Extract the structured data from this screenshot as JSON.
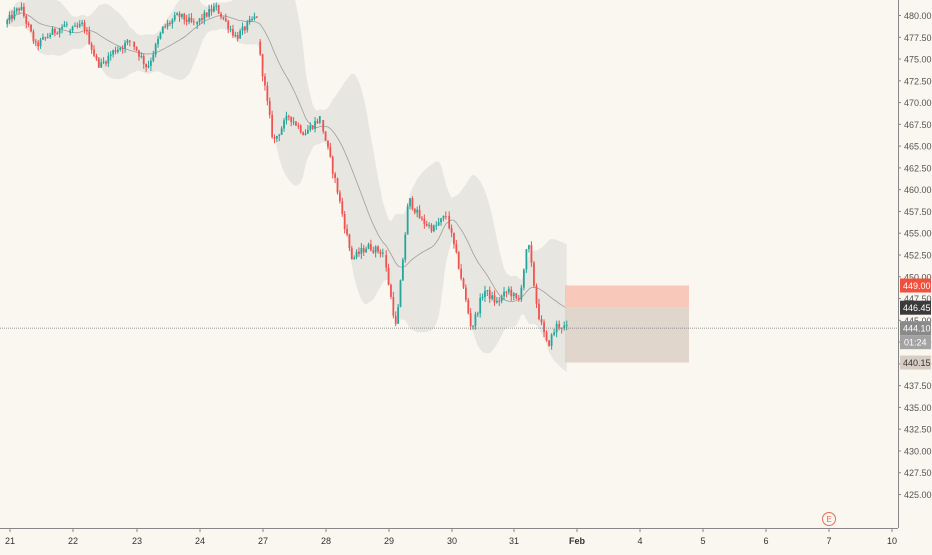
{
  "chart_data": {
    "type": "candlestick",
    "title": "",
    "xlabel": "",
    "ylabel": "",
    "x_ticks": [
      "21",
      "22",
      "23",
      "24",
      "27",
      "28",
      "29",
      "30",
      "31",
      "Feb",
      "4",
      "5",
      "6",
      "7",
      "10"
    ],
    "y_ticks": [
      "425.00",
      "427.50",
      "430.00",
      "432.50",
      "435.00",
      "437.50",
      "440.00",
      "442.50",
      "445.00",
      "447.50",
      "450.00",
      "452.50",
      "455.00",
      "457.50",
      "460.00",
      "462.50",
      "465.00",
      "467.50",
      "470.00",
      "472.50",
      "475.00",
      "477.50",
      "480.00"
    ],
    "ylim": [
      424.5,
      481.5
    ],
    "grid": false,
    "colors": {
      "up": "#26a69a",
      "down": "#ef5350",
      "band": "#e3e3de",
      "basis": "#9e9e9e",
      "stop_zone": "#f7c3b5",
      "entry_zone": "#ddd3c8"
    },
    "price_labels": {
      "stop": "449.00",
      "current": "446.45",
      "last": "444.10",
      "countdown": "01:24",
      "target": "440.15"
    },
    "position_tool": {
      "type": "short",
      "entry": 446.45,
      "stop": 449.0,
      "target": 440.15,
      "start_date": "31",
      "end_date": "5"
    },
    "indicator": "Bollinger Bands",
    "sessions": [
      {
        "date": "21",
        "open": 479.0,
        "high": 481.5,
        "low": 476.0,
        "close": 479.0
      },
      {
        "date": "22",
        "open": 478.0,
        "high": 479.5,
        "low": 474.0,
        "close": 477.0
      },
      {
        "date": "23",
        "open": 477.0,
        "high": 481.0,
        "low": 473.5,
        "close": 479.0
      },
      {
        "date": "24",
        "open": 479.0,
        "high": 481.5,
        "low": 477.0,
        "close": 480.0
      },
      {
        "date": "27",
        "open": 477.0,
        "high": 477.5,
        "low": 464.5,
        "close": 468.0
      },
      {
        "date": "28",
        "open": 468.0,
        "high": 468.0,
        "low": 452.0,
        "close": 453.0
      },
      {
        "date": "29",
        "open": 453.0,
        "high": 460.0,
        "low": 443.5,
        "close": 457.0
      },
      {
        "date": "30",
        "open": 457.0,
        "high": 458.0,
        "low": 442.5,
        "close": 448.5
      },
      {
        "date": "31",
        "open": 448.5,
        "high": 454.5,
        "low": 441.5,
        "close": 444.1
      }
    ],
    "markers": [
      {
        "date": "7",
        "label": "E"
      }
    ]
  }
}
